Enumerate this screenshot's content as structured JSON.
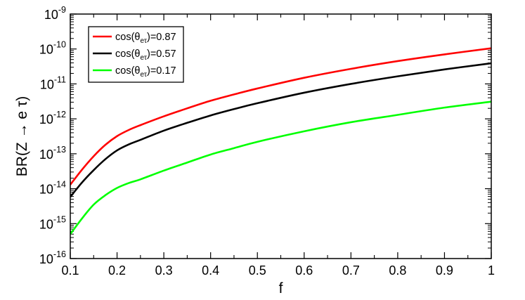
{
  "chart_data": {
    "type": "line",
    "xlabel": "f",
    "ylabel": "BR(Z → e τ)",
    "xlim": [
      0.1,
      1.0
    ],
    "ylim": [
      1e-16,
      1e-09
    ],
    "yscale": "log",
    "grid": false,
    "legend_position": "top-left",
    "x_ticks": [
      {
        "value": 0.1,
        "label": "0.1"
      },
      {
        "value": 0.2,
        "label": "0.2"
      },
      {
        "value": 0.3,
        "label": "0.3"
      },
      {
        "value": 0.4,
        "label": "0.4"
      },
      {
        "value": 0.5,
        "label": "0.5"
      },
      {
        "value": 0.6,
        "label": "0.6"
      },
      {
        "value": 0.7,
        "label": "0.7"
      },
      {
        "value": 0.8,
        "label": "0.8"
      },
      {
        "value": 0.9,
        "label": "0.9"
      },
      {
        "value": 1.0,
        "label": "1"
      }
    ],
    "y_ticks": [
      {
        "value": 1e-16,
        "base": "10",
        "exp": "-16"
      },
      {
        "value": 1e-15,
        "base": "10",
        "exp": "-15"
      },
      {
        "value": 1e-14,
        "base": "10",
        "exp": "-14"
      },
      {
        "value": 1e-13,
        "base": "10",
        "exp": "-13"
      },
      {
        "value": 1e-12,
        "base": "10",
        "exp": "-12"
      },
      {
        "value": 1e-11,
        "base": "10",
        "exp": "-11"
      },
      {
        "value": 1e-10,
        "base": "10",
        "exp": "-10"
      },
      {
        "value": 1e-09,
        "base": "10",
        "exp": "-9"
      }
    ],
    "series": [
      {
        "name": "cos(θ_eτ)=0.87",
        "legend_prefix": "cos(θ",
        "legend_sub": "eτ",
        "legend_suffix": ")=0.87",
        "color": "#ff0000",
        "x": [
          0.1,
          0.125,
          0.15,
          0.175,
          0.2,
          0.225,
          0.25,
          0.3,
          0.35,
          0.4,
          0.45,
          0.5,
          0.6,
          0.7,
          0.8,
          0.9,
          1.0
        ],
        "y": [
          1.3e-14,
          3.5e-14,
          8.5e-14,
          1.8e-13,
          3.2e-13,
          4.8e-13,
          6.6e-13,
          1.18e-12,
          2e-12,
          3.3e-12,
          5e-12,
          7.4e-12,
          1.5e-11,
          2.7e-11,
          4.5e-11,
          7e-11,
          1.05e-10
        ]
      },
      {
        "name": "cos(θ_eτ)=0.57",
        "legend_prefix": "cos(θ",
        "legend_sub": "eτ",
        "legend_suffix": ")=0.57",
        "color": "#000000",
        "x": [
          0.1,
          0.125,
          0.15,
          0.175,
          0.2,
          0.225,
          0.25,
          0.3,
          0.35,
          0.4,
          0.45,
          0.5,
          0.6,
          0.7,
          0.8,
          0.9,
          1.0
        ],
        "y": [
          5.8e-15,
          1.5e-14,
          3.4e-14,
          7e-14,
          1.25e-13,
          1.85e-13,
          2.5e-13,
          4.6e-13,
          7.7e-13,
          1.25e-12,
          1.9e-12,
          2.8e-12,
          5.6e-12,
          1e-11,
          1.65e-11,
          2.6e-11,
          3.9e-11
        ]
      },
      {
        "name": "cos(θ_eτ)=0.17",
        "legend_prefix": "cos(θ",
        "legend_sub": "eτ",
        "legend_suffix": ")=0.17",
        "color": "#00ff00",
        "x": [
          0.1,
          0.125,
          0.15,
          0.175,
          0.2,
          0.225,
          0.25,
          0.3,
          0.35,
          0.4,
          0.45,
          0.5,
          0.6,
          0.7,
          0.8,
          0.9,
          1.0
        ],
        "y": [
          5e-16,
          1.4e-15,
          3.5e-15,
          6.5e-15,
          1.05e-14,
          1.45e-14,
          1.85e-14,
          3.3e-14,
          5.6e-14,
          9.5e-14,
          1.45e-13,
          2.2e-13,
          4.4e-13,
          8e-13,
          1.3e-12,
          2.1e-12,
          3.1e-12
        ]
      }
    ]
  }
}
